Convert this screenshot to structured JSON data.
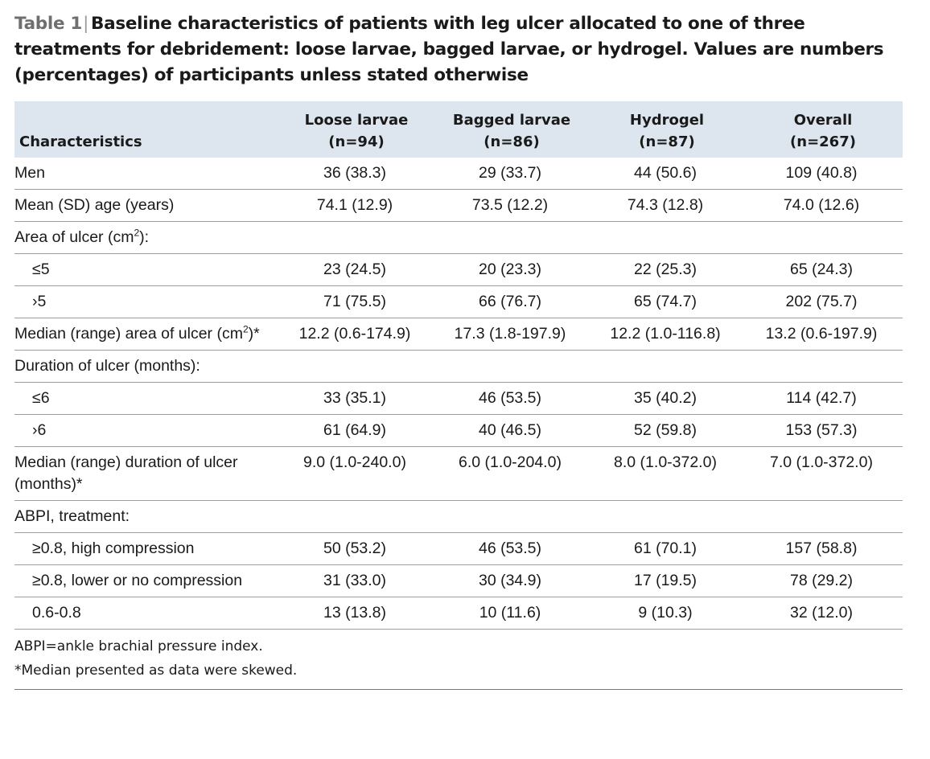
{
  "caption": {
    "label": "Table 1",
    "text": "Baseline characteristics of patients with leg ulcer allocated to one of three treatments for debridement: loose larvae, bagged larvae, or hydrogel. Values are numbers (percentages) of participants unless stated otherwise"
  },
  "columns": [
    {
      "line1": "",
      "line2": "Characteristics"
    },
    {
      "line1": "Loose larvae",
      "line2": "(n=94)"
    },
    {
      "line1": "Bagged larvae",
      "line2": "(n=86)"
    },
    {
      "line1": "Hydrogel",
      "line2": "(n=87)"
    },
    {
      "line1": "Overall",
      "line2": "(n=267)"
    }
  ],
  "rows": [
    {
      "label": "Men",
      "values": [
        "36 (38.3)",
        "29 (33.7)",
        "44 (50.6)",
        "109 (40.8)"
      ]
    },
    {
      "label": "Mean (SD) age (years)",
      "values": [
        "74.1 (12.9)",
        "73.5 (12.2)",
        "74.3 (12.8)",
        "74.0 (12.6)"
      ]
    },
    {
      "label_pre": "Area of ulcer (cm",
      "label_sup": "2",
      "label_post": "):"
    },
    {
      "label": "≤5",
      "values": [
        "23 (24.5)",
        "20 (23.3)",
        "22 (25.3)",
        "65 (24.3)"
      ]
    },
    {
      "label": "›5",
      "values": [
        "71 (75.5)",
        "66 (76.7)",
        "65 (74.7)",
        "202 (75.7)"
      ]
    },
    {
      "label_pre": "Median (range) area of ulcer (cm",
      "label_sup": "2",
      "label_post": ")*",
      "values": [
        "12.2 (0.6-174.9)",
        "17.3 (1.8-197.9)",
        "12.2 (1.0-116.8)",
        "13.2 (0.6-197.9)"
      ]
    },
    {
      "label": "Duration of ulcer (months):"
    },
    {
      "label": "≤6",
      "values": [
        "33 (35.1)",
        "46 (53.5)",
        "35 (40.2)",
        "114 (42.7)"
      ]
    },
    {
      "label": "›6",
      "values": [
        "61 (64.9)",
        "40 (46.5)",
        "52 (59.8)",
        "153 (57.3)"
      ]
    },
    {
      "label": "Median (range) duration of ulcer (months)*",
      "values": [
        "9.0 (1.0-240.0)",
        "6.0 (1.0-204.0)",
        "8.0 (1.0-372.0)",
        "7.0 (1.0-372.0)"
      ]
    },
    {
      "label": "ABPI, treatment:"
    },
    {
      "label": "≥0.8, high compression",
      "values": [
        "50 (53.2)",
        "46 (53.5)",
        "61 (70.1)",
        "157 (58.8)"
      ]
    },
    {
      "label": "≥0.8, lower or no compression",
      "values": [
        "31 (33.0)",
        "30 (34.9)",
        "17 (19.5)",
        "78 (29.2)"
      ]
    },
    {
      "label": "0.6-0.8",
      "values": [
        "13 (13.8)",
        "10 (11.6)",
        "9 (10.3)",
        "32 (12.0)"
      ]
    }
  ],
  "footnotes": [
    "ABPI=ankle brachial pressure index.",
    "*Median presented as data were skewed."
  ]
}
